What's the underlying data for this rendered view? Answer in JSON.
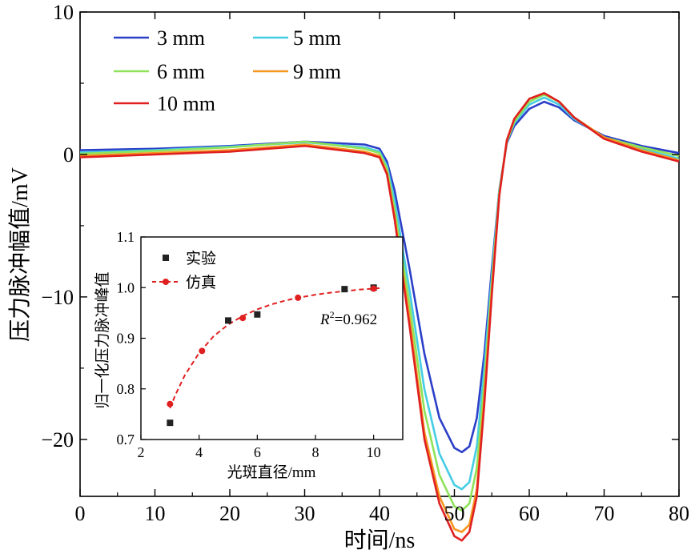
{
  "chart_data": [
    {
      "type": "line",
      "xlabel": "时间/ns",
      "ylabel": "压力脉冲幅值/mV",
      "xlim": [
        0,
        80
      ],
      "ylim": [
        -24,
        10
      ],
      "x_ticks": [
        "0",
        "10",
        "20",
        "30",
        "40",
        "50",
        "60",
        "70",
        "80"
      ],
      "y_ticks": [
        "−20",
        "−10",
        "0",
        "10"
      ],
      "legend_position": "top-left",
      "series": [
        {
          "name": "3 mm",
          "color": "#2b3fc8",
          "x": [
            0,
            10,
            20,
            30,
            38,
            40,
            41,
            42,
            44,
            46,
            48,
            50,
            51,
            52,
            53,
            54,
            55,
            56,
            57,
            58,
            60,
            62,
            64,
            66,
            70,
            75,
            80
          ],
          "y": [
            0.3,
            0.4,
            0.6,
            0.9,
            0.7,
            0.4,
            -0.5,
            -2.5,
            -8,
            -14,
            -18.5,
            -20.6,
            -20.9,
            -20.5,
            -18.5,
            -14,
            -8,
            -2.5,
            0.8,
            2.0,
            3.2,
            3.7,
            3.3,
            2.4,
            1.3,
            0.6,
            0.1
          ]
        },
        {
          "name": "5 mm",
          "color": "#45cde4",
          "x": [
            0,
            10,
            20,
            30,
            38,
            40,
            41,
            42,
            44,
            46,
            48,
            50,
            51,
            52,
            53,
            54,
            55,
            56,
            57,
            58,
            60,
            62,
            64,
            66,
            70,
            75,
            80
          ],
          "y": [
            0.15,
            0.3,
            0.55,
            0.85,
            0.5,
            0.2,
            -0.8,
            -3.2,
            -9.5,
            -16.5,
            -21,
            -23.2,
            -23.5,
            -23,
            -20.5,
            -15,
            -8.5,
            -2.5,
            0.9,
            2.2,
            3.5,
            4.0,
            3.5,
            2.5,
            1.2,
            0.4,
            -0.3
          ]
        },
        {
          "name": "6 mm",
          "color": "#8ee35a",
          "x": [
            0,
            10,
            20,
            30,
            38,
            40,
            41,
            42,
            44,
            46,
            48,
            50,
            51,
            52,
            53,
            54,
            55,
            56,
            57,
            58,
            60,
            62,
            64,
            66,
            70,
            75,
            80
          ],
          "y": [
            0.05,
            0.25,
            0.5,
            0.9,
            0.4,
            0.1,
            -1,
            -3.8,
            -10.5,
            -18,
            -22.5,
            -24.7,
            -25,
            -24.5,
            -22,
            -16,
            -9,
            -2.7,
            0.9,
            2.3,
            3.7,
            4.2,
            3.7,
            2.6,
            1.2,
            0.5,
            -0.1
          ]
        },
        {
          "name": "9 mm",
          "color": "#f5961f",
          "x": [
            0,
            10,
            20,
            30,
            38,
            40,
            41,
            42,
            44,
            46,
            48,
            50,
            51,
            52,
            53,
            54,
            55,
            56,
            57,
            58,
            60,
            62,
            64,
            66,
            70,
            75,
            80
          ],
          "y": [
            -0.1,
            0.1,
            0.3,
            0.7,
            0.2,
            -0.1,
            -1.3,
            -4.3,
            -11.5,
            -19.5,
            -24,
            -26.3,
            -26.5,
            -26,
            -23.5,
            -17,
            -9.5,
            -2.8,
            1.0,
            2.5,
            3.9,
            4.3,
            3.7,
            2.6,
            1.2,
            0.3,
            -0.4
          ]
        },
        {
          "name": "10 mm",
          "color": "#e02020",
          "x": [
            0,
            10,
            20,
            30,
            38,
            40,
            41,
            42,
            44,
            46,
            48,
            50,
            51,
            52,
            53,
            54,
            55,
            56,
            57,
            58,
            60,
            62,
            64,
            66,
            70,
            75,
            80
          ],
          "y": [
            -0.2,
            0.0,
            0.2,
            0.6,
            0.1,
            -0.2,
            -1.4,
            -4.5,
            -12,
            -20,
            -24.5,
            -26.8,
            -27.1,
            -26.5,
            -24,
            -17.5,
            -9.8,
            -2.9,
            1.0,
            2.5,
            3.9,
            4.3,
            3.7,
            2.6,
            1.1,
            0.2,
            -0.5
          ]
        }
      ]
    },
    {
      "type": "scatter",
      "xlabel": "光斑直径/mm",
      "ylabel": "归一化压力脉冲峰值",
      "xlim": [
        2,
        11
      ],
      "ylim": [
        0.7,
        1.1
      ],
      "x_ticks": [
        "2",
        "4",
        "6",
        "8",
        "10"
      ],
      "y_ticks": [
        "0.7",
        "0.8",
        "0.9",
        "1.0",
        "1.1"
      ],
      "annotation_prefix": "R",
      "annotation_sup": "2",
      "annotation_value": "=0.962",
      "legend_position": "top-left",
      "series": [
        {
          "name": "实验",
          "marker": "square",
          "color": "#222222",
          "x": [
            3,
            5,
            6,
            9,
            10
          ],
          "y": [
            0.733,
            0.935,
            0.947,
            0.997,
            1.0
          ]
        },
        {
          "name": "仿真",
          "marker": "circle",
          "color": "#e02020",
          "x": [
            3,
            4.1,
            5.5,
            7.4,
            10
          ],
          "y": [
            0.77,
            0.875,
            0.94,
            0.98,
            0.998
          ]
        }
      ],
      "fit_curve": {
        "color": "#e02020",
        "x": [
          3,
          3.2,
          3.5,
          4,
          4.5,
          5,
          5.5,
          6,
          6.5,
          7,
          7.5,
          8,
          8.5,
          9,
          9.5,
          10,
          10.2
        ],
        "y": [
          0.762,
          0.79,
          0.826,
          0.871,
          0.904,
          0.927,
          0.944,
          0.957,
          0.967,
          0.975,
          0.981,
          0.986,
          0.99,
          0.993,
          0.996,
          0.998,
          0.999
        ]
      }
    }
  ]
}
